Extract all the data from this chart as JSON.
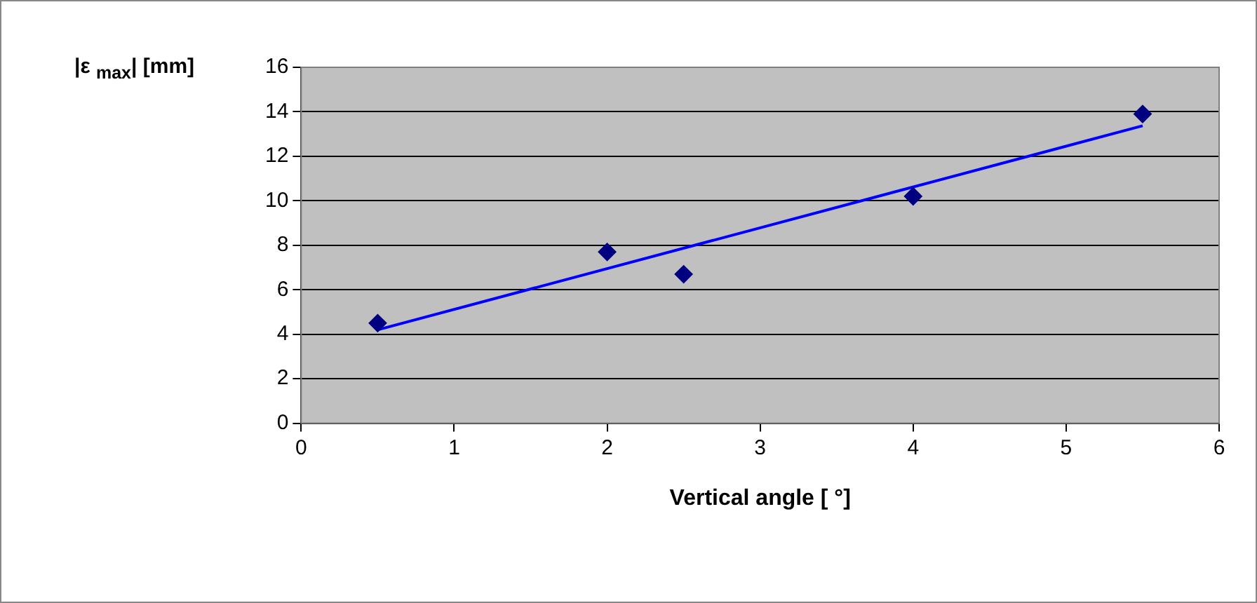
{
  "chart_data": {
    "type": "scatter",
    "xlabel": "Vertical angle [ °]",
    "ylabel": "|ε $_{max}$| [mm]",
    "x": [
      0.5,
      2,
      2.5,
      4,
      5.5
    ],
    "series": [
      {
        "type": "scatter",
        "color": "#000080",
        "values": [
          4.5,
          7.7,
          6.7,
          10.2,
          13.9
        ],
        "marker": "diamond"
      },
      {
        "type": "line",
        "color": "#0000ff",
        "x": [
          0.5,
          5.5
        ],
        "values": [
          4.2,
          13.37
        ],
        "marker": "none",
        "line_style": "solid"
      }
    ],
    "xlim": [
      0,
      6
    ],
    "xticks": [
      0,
      1,
      2,
      3,
      4,
      5,
      6
    ],
    "ylim": [
      0,
      16
    ],
    "yticks": [
      0,
      2,
      4,
      6,
      8,
      10,
      12,
      14,
      16
    ],
    "grid": "y",
    "legend": false
  }
}
